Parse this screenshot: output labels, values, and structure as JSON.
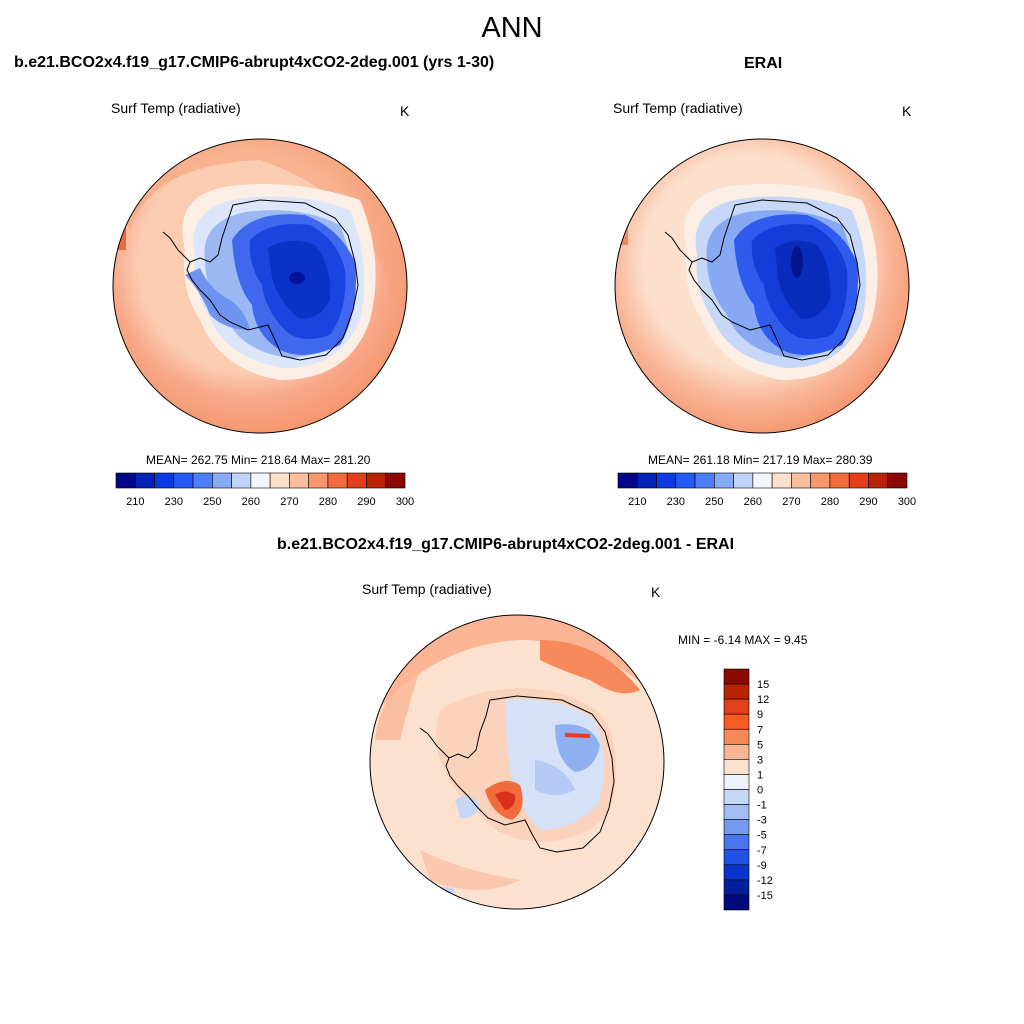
{
  "figure": {
    "season": "ANN"
  },
  "panels": [
    {
      "id": "model",
      "title": "b.e21.BCO2x4.f19_g17.CMIP6-abrupt4xCO2-2deg.001 (yrs 1-30)",
      "variable": "Surf Temp (radiative)",
      "units": "K",
      "stats": "MEAN= 262.75  Min= 218.64  Max= 281.20"
    },
    {
      "id": "obs",
      "title": "ERAI",
      "variable": "Surf Temp (radiative)",
      "units": "K",
      "stats": "MEAN= 261.18  Min= 217.19  Max= 280.39"
    },
    {
      "id": "diff",
      "title": "b.e21.BCO2x4.f19_g17.CMIP6-abrupt4xCO2-2deg.001 - ERAI",
      "variable": "Surf Temp (radiative)",
      "units": "K",
      "stats": "MIN =  -6.14 MAX =   9.45"
    }
  ],
  "colorbar_abs": {
    "colors": [
      "#03068a",
      "#0523b6",
      "#0a3ae0",
      "#2459f5",
      "#4c7ff7",
      "#87aaf7",
      "#c0d3f9",
      "#f2f5fc",
      "#fde0cc",
      "#fbbd9b",
      "#f7956b",
      "#f26b3d",
      "#e2401b",
      "#b82205",
      "#8a0a03"
    ],
    "tick_labels": [
      "210",
      "230",
      "250",
      "260",
      "270",
      "280",
      "290",
      "300"
    ]
  },
  "colorbar_diff": {
    "colors": [
      "#8a0a03",
      "#b82205",
      "#e2401b",
      "#f75a22",
      "#f7895a",
      "#fbb595",
      "#fde1cf",
      "#eef3fb",
      "#c6d7f5",
      "#a2bdf2",
      "#7499ee",
      "#4874ec",
      "#2150e6",
      "#0a33cc",
      "#021f9c",
      "#000a78"
    ],
    "tick_labels": [
      "15",
      "12",
      "9",
      "7",
      "5",
      "3",
      "1",
      "0",
      "-1",
      "-3",
      "-5",
      "-7",
      "-9",
      "-12",
      "-15"
    ]
  }
}
